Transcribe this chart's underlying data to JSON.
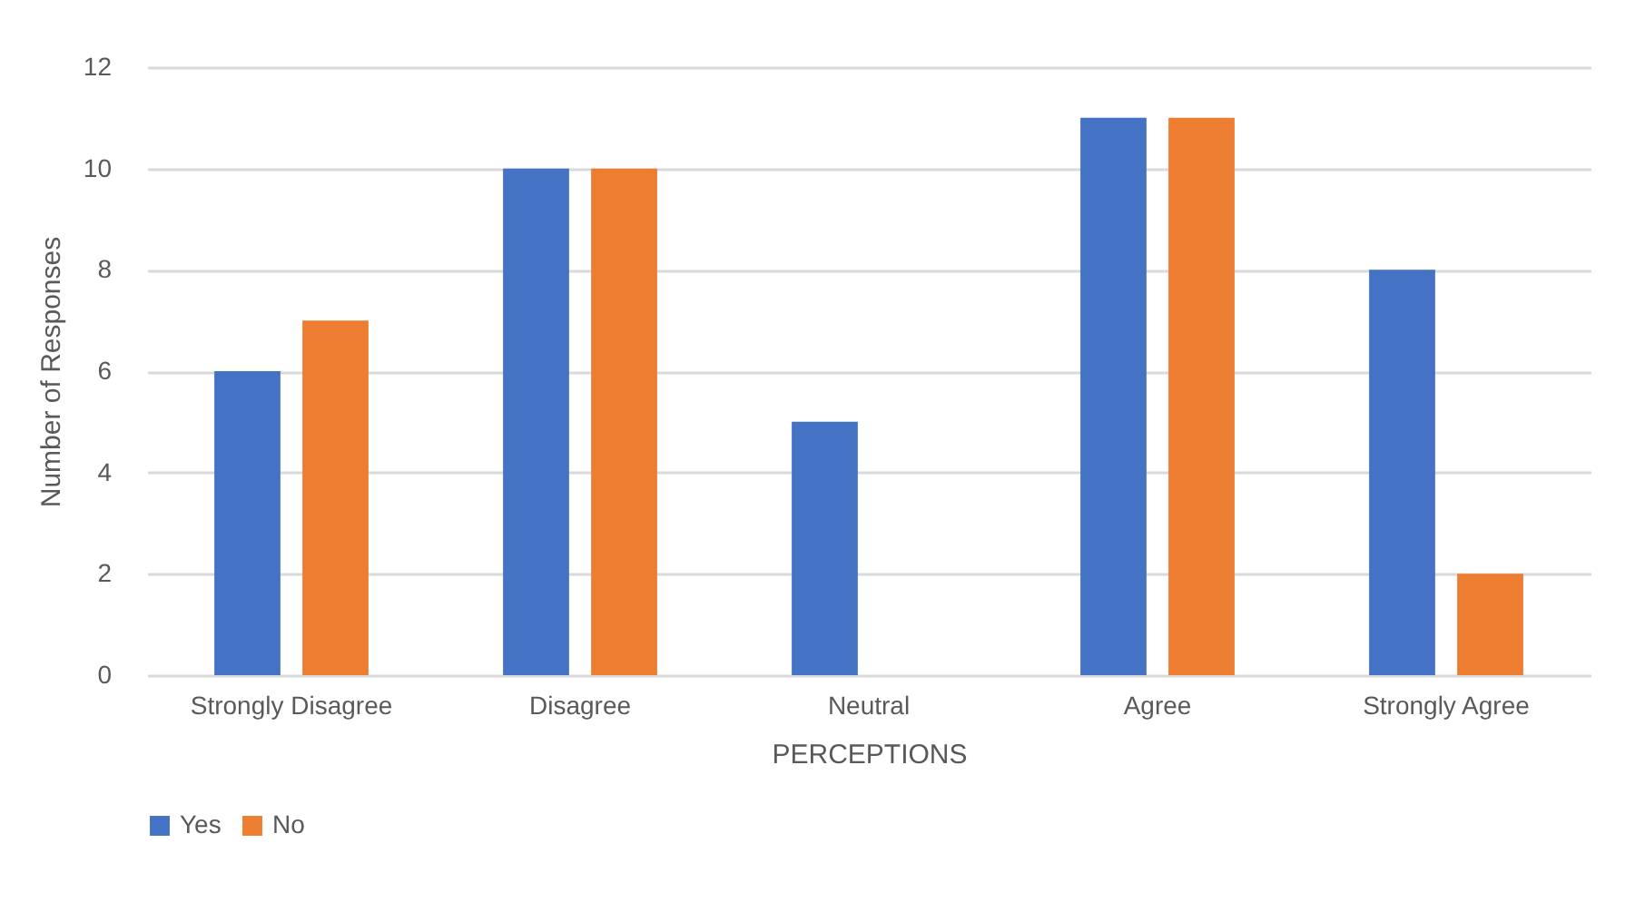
{
  "chart_data": {
    "type": "bar",
    "xlabel": "PERCEPTIONS",
    "ylabel": "Number of Responses",
    "categories": [
      "Strongly Disagree",
      "Disagree",
      "Neutral",
      "Agree",
      "Strongly Agree"
    ],
    "series": [
      {
        "name": "Yes",
        "color": "#4472c4",
        "values": [
          6,
          10,
          5,
          11,
          8
        ]
      },
      {
        "name": "No",
        "color": "#ed7d31",
        "values": [
          7,
          10,
          0,
          11,
          2
        ]
      }
    ],
    "ylim": [
      0,
      12
    ],
    "yticks": [
      0,
      2,
      4,
      6,
      8,
      10,
      12
    ],
    "grid": "y",
    "legend": "bottom"
  }
}
